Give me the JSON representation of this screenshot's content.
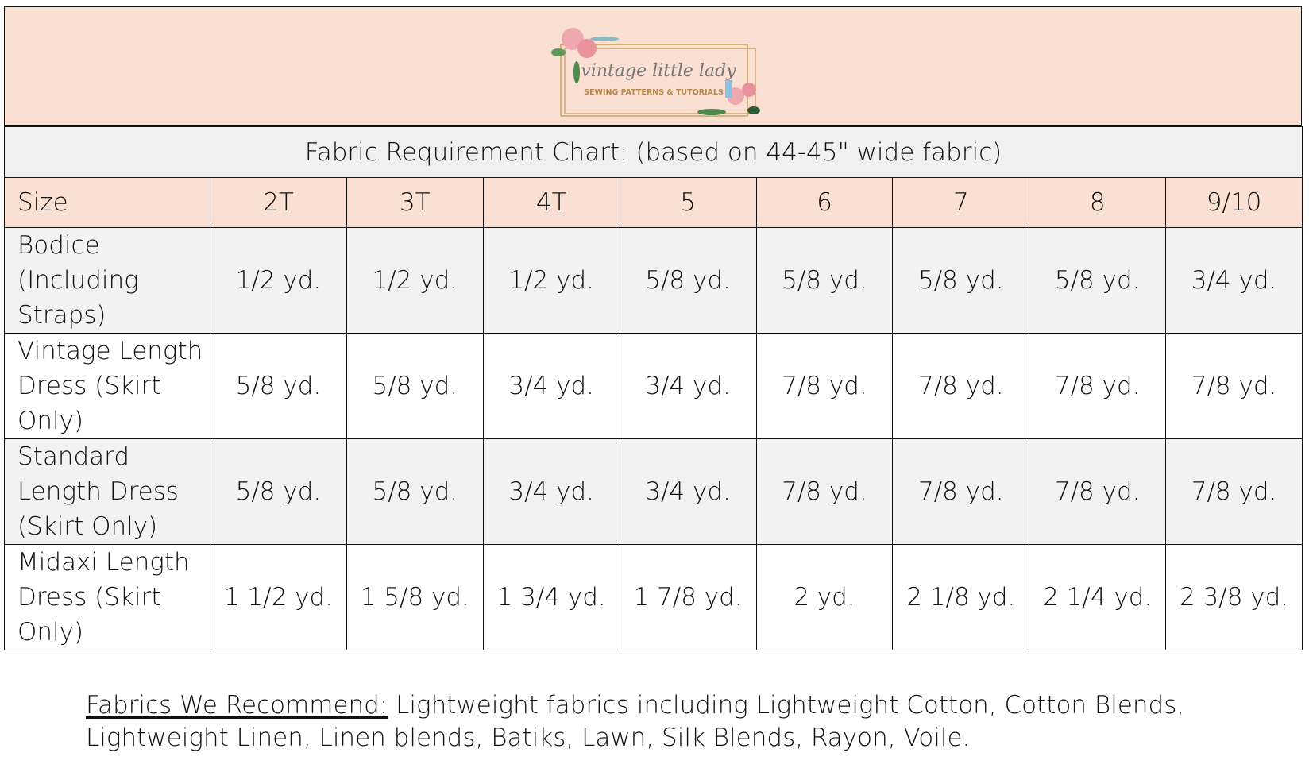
{
  "logo": {
    "script": "vintage little lady",
    "tagline": "SEWING PATTERNS & TUTORIALS"
  },
  "title": "Fabric Requirement Chart: (based on 44-45\" wide fabric)",
  "header_label": "Size",
  "sizes": [
    "2T",
    "3T",
    "4T",
    "5",
    "6",
    "7",
    "8",
    "9/10"
  ],
  "rows": [
    {
      "label": "Bodice (Including Straps)",
      "values": [
        "1/2 yd.",
        "1/2 yd.",
        "1/2 yd.",
        "5/8 yd.",
        "5/8 yd.",
        "5/8 yd.",
        "5/8 yd.",
        "3/4 yd."
      ]
    },
    {
      "label": "Vintage Length Dress (Skirt Only)",
      "values": [
        "5/8 yd.",
        "5/8 yd.",
        "3/4 yd.",
        "3/4 yd.",
        "7/8 yd.",
        "7/8 yd.",
        "7/8 yd.",
        "7/8 yd."
      ]
    },
    {
      "label": "Standard Length Dress (Skirt Only)",
      "values": [
        "5/8 yd.",
        "5/8 yd.",
        "3/4 yd.",
        "3/4 yd.",
        "7/8 yd.",
        "7/8 yd.",
        "7/8 yd.",
        "7/8 yd."
      ]
    },
    {
      "label": "Midaxi Length Dress (Skirt Only)",
      "values": [
        "1 1/2 yd.",
        "1 5/8 yd.",
        "1 3/4 yd.",
        "1 7/8 yd.",
        "2 yd.",
        "2 1/8 yd.",
        "2 1/4 yd.",
        "2 3/8 yd."
      ]
    }
  ],
  "footer": {
    "heading": "Fabrics We Recommend:",
    "text": " Lightweight fabrics including Lightweight Cotton, Cotton Blends, Lightweight Linen, Linen blends, Batiks, Lawn, Silk Blends, Rayon, Voile."
  },
  "colors": {
    "peach": "#fadfd3",
    "gray": "#f2f2f2",
    "gold": "#b8894a"
  }
}
